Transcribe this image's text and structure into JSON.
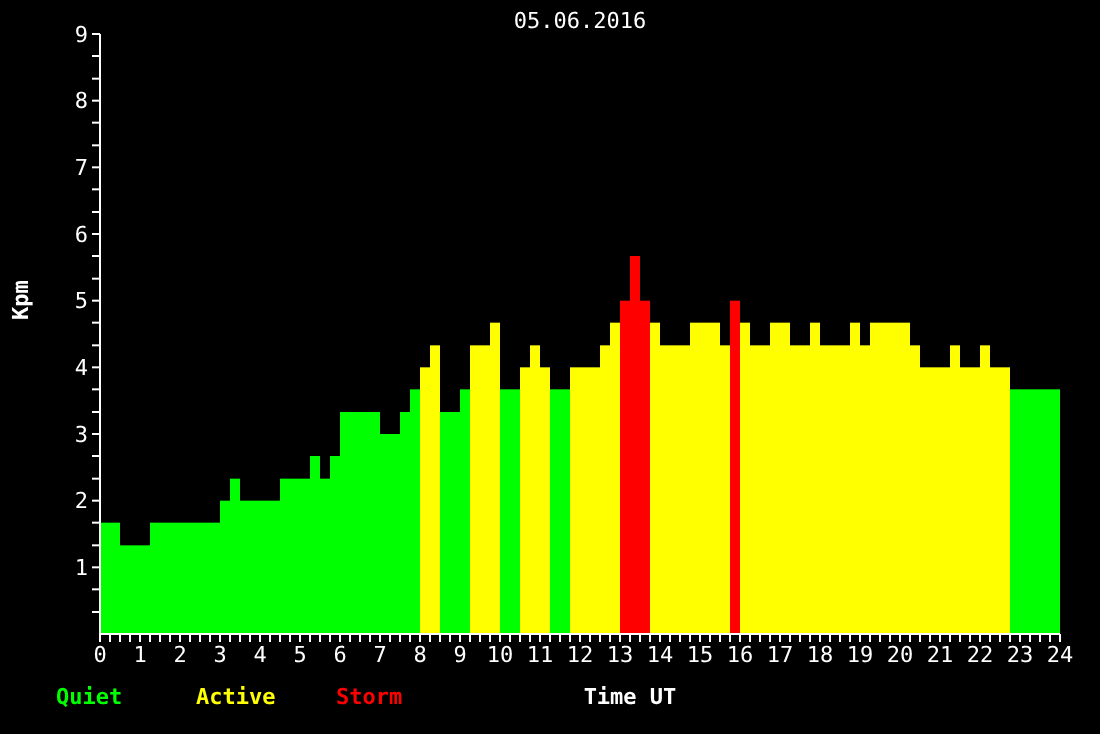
{
  "chart_data": {
    "type": "histogram",
    "title": "05.06.2016",
    "xlabel": "Time UT",
    "ylabel": "Kpm",
    "bins": [
      0,
      0.5,
      1.25,
      3,
      3.25,
      3.5,
      4.5,
      5.25,
      5.5,
      5.75,
      6,
      7,
      7.5,
      7.75,
      8,
      8.25,
      8.5,
      9,
      9.25,
      9.75,
      10,
      10.5,
      10.75,
      11,
      11.25,
      11.75,
      12.5,
      12.75,
      13,
      13.25,
      13.5,
      13.75,
      14,
      14.75,
      15.5,
      15.75,
      16,
      16.25,
      16.75,
      17.25,
      17.75,
      18,
      18.75,
      19,
      19.25,
      20.25,
      20.5,
      21.25,
      21.5,
      22,
      22.25,
      22.75,
      24
    ],
    "series": [
      {
        "name": "Quiet",
        "color": "#00ff00",
        "values": [
          1.67,
          1.33,
          1.67,
          2,
          2.33,
          2,
          2.33,
          2.67,
          2.33,
          2.67,
          3.33,
          3,
          3.33,
          3.67,
          null,
          null,
          3.33,
          3.67,
          null,
          null,
          3.67,
          null,
          null,
          null,
          3.67,
          null,
          null,
          null,
          null,
          null,
          null,
          null,
          null,
          null,
          null,
          null,
          null,
          null,
          null,
          null,
          null,
          null,
          null,
          null,
          null,
          null,
          null,
          null,
          null,
          null,
          null,
          3.67
        ]
      },
      {
        "name": "Active",
        "color": "#ffff00",
        "values": [
          null,
          null,
          null,
          null,
          null,
          null,
          null,
          null,
          null,
          null,
          null,
          null,
          null,
          null,
          4,
          4.33,
          null,
          null,
          4.33,
          4.67,
          null,
          4,
          4.33,
          4,
          null,
          4,
          4.33,
          4.67,
          null,
          null,
          null,
          4.67,
          4.33,
          4.67,
          4.33,
          null,
          4.67,
          4.33,
          4.67,
          4.33,
          4.67,
          4.33,
          4.67,
          4.33,
          4.67,
          4.33,
          4,
          4.33,
          4,
          4.33,
          4,
          null
        ]
      },
      {
        "name": "Storm",
        "color": "#ff0000",
        "values": [
          null,
          null,
          null,
          null,
          null,
          null,
          null,
          null,
          null,
          null,
          null,
          null,
          null,
          null,
          null,
          null,
          null,
          null,
          null,
          null,
          null,
          null,
          null,
          null,
          null,
          null,
          null,
          null,
          5,
          5.67,
          5,
          null,
          null,
          null,
          null,
          5,
          null,
          null,
          null,
          null,
          null,
          null,
          null,
          null,
          null,
          null,
          null,
          null,
          null,
          null,
          null,
          null
        ]
      }
    ],
    "xlim": [
      0,
      24
    ],
    "ylim": [
      0,
      9
    ],
    "xticks": [
      0,
      {
        "value": 0.25,
        "label": null
      },
      {
        "value": 0.5,
        "label": null
      },
      {
        "value": 0.75,
        "label": null
      },
      1,
      {
        "value": 1.25,
        "label": null
      },
      {
        "value": 1.5,
        "label": null
      },
      {
        "value": 1.75,
        "label": null
      },
      2,
      {
        "value": 2.25,
        "label": null
      },
      {
        "value": 2.5,
        "label": null
      },
      {
        "value": 2.75,
        "label": null
      },
      3,
      {
        "value": 3.25,
        "label": null
      },
      {
        "value": 3.5,
        "label": null
      },
      {
        "value": 3.75,
        "label": null
      },
      4,
      {
        "value": 4.25,
        "label": null
      },
      {
        "value": 4.5,
        "label": null
      },
      {
        "value": 4.75,
        "label": null
      },
      5,
      {
        "value": 5.25,
        "label": null
      },
      {
        "value": 5.5,
        "label": null
      },
      {
        "value": 5.75,
        "label": null
      },
      6,
      {
        "value": 6.25,
        "label": null
      },
      {
        "value": 6.5,
        "label": null
      },
      {
        "value": 6.75,
        "label": null
      },
      7,
      {
        "value": 7.25,
        "label": null
      },
      {
        "value": 7.5,
        "label": null
      },
      {
        "value": 7.75,
        "label": null
      },
      8,
      {
        "value": 8.25,
        "label": null
      },
      {
        "value": 8.5,
        "label": null
      },
      {
        "value": 8.75,
        "label": null
      },
      9,
      {
        "value": 9.25,
        "label": null
      },
      {
        "value": 9.5,
        "label": null
      },
      {
        "value": 9.75,
        "label": null
      },
      10,
      {
        "value": 10.25,
        "label": null
      },
      {
        "value": 10.5,
        "label": null
      },
      {
        "value": 10.75,
        "label": null
      },
      11,
      {
        "value": 11.25,
        "label": null
      },
      {
        "value": 11.5,
        "label": null
      },
      {
        "value": 11.75,
        "label": null
      },
      12,
      {
        "value": 12.25,
        "label": null
      },
      {
        "value": 12.5,
        "label": null
      },
      {
        "value": 12.75,
        "label": null
      },
      13,
      {
        "value": 13.25,
        "label": null
      },
      {
        "value": 13.5,
        "label": null
      },
      {
        "value": 13.75,
        "label": null
      },
      14,
      {
        "value": 14.25,
        "label": null
      },
      {
        "value": 14.5,
        "label": null
      },
      {
        "value": 14.75,
        "label": null
      },
      15,
      {
        "value": 15.25,
        "label": null
      },
      {
        "value": 15.5,
        "label": null
      },
      {
        "value": 15.75,
        "label": null
      },
      16,
      {
        "value": 16.25,
        "label": null
      },
      {
        "value": 16.5,
        "label": null
      },
      {
        "value": 16.75,
        "label": null
      },
      17,
      {
        "value": 17.25,
        "label": null
      },
      {
        "value": 17.5,
        "label": null
      },
      {
        "value": 17.75,
        "label": null
      },
      18,
      {
        "value": 18.25,
        "label": null
      },
      {
        "value": 18.5,
        "label": null
      },
      {
        "value": 18.75,
        "label": null
      },
      19,
      {
        "value": 19.25,
        "label": null
      },
      {
        "value": 19.5,
        "label": null
      },
      {
        "value": 19.75,
        "label": null
      },
      20,
      {
        "value": 20.25,
        "label": null
      },
      {
        "value": 20.5,
        "label": null
      },
      {
        "value": 20.75,
        "label": null
      },
      21,
      {
        "value": 21.25,
        "label": null
      },
      {
        "value": 21.5,
        "label": null
      },
      {
        "value": 21.75,
        "label": null
      },
      22,
      {
        "value": 22.25,
        "label": null
      },
      {
        "value": 22.5,
        "label": null
      },
      {
        "value": 22.75,
        "label": null
      },
      23,
      {
        "value": 23.25,
        "label": null
      },
      {
        "value": 23.5,
        "label": null
      },
      {
        "value": 23.75,
        "label": null
      },
      24
    ],
    "yticks": [
      {
        "value": 0.33,
        "label": null
      },
      {
        "value": 0.67,
        "label": null
      },
      1,
      {
        "value": 1.33,
        "label": null
      },
      {
        "value": 1.67,
        "label": null
      },
      2,
      {
        "value": 2.33,
        "label": null
      },
      {
        "value": 2.67,
        "label": null
      },
      3,
      {
        "value": 3.33,
        "label": null
      },
      {
        "value": 3.67,
        "label": null
      },
      4,
      {
        "value": 4.33,
        "label": null
      },
      {
        "value": 4.67,
        "label": null
      },
      5,
      {
        "value": 5.33,
        "label": null
      },
      {
        "value": 5.67,
        "label": null
      },
      6,
      {
        "value": 6.33,
        "label": null
      },
      {
        "value": 6.67,
        "label": null
      },
      7,
      {
        "value": 7.33,
        "label": null
      },
      {
        "value": 7.67,
        "label": null
      },
      8,
      {
        "value": 8.33,
        "label": null
      },
      {
        "value": 8.67,
        "label": null
      },
      9
    ],
    "legend": "bottom left",
    "grid": false
  }
}
